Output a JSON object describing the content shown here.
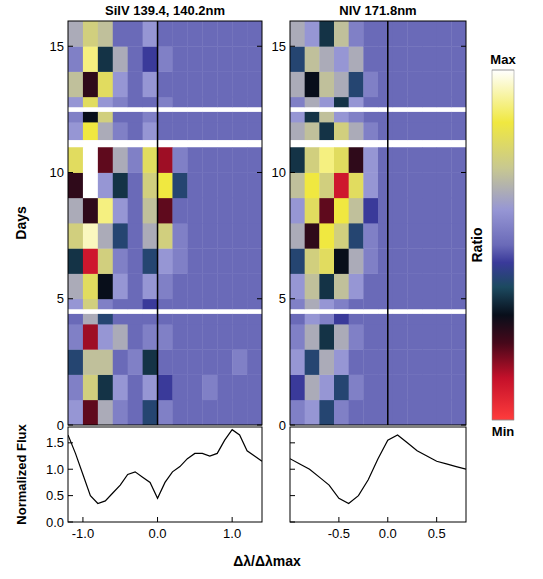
{
  "chart_data": [
    {
      "type": "heatmap",
      "title": "SiIV 139.4, 140.2nm",
      "y_label": "Days",
      "xlim": [
        -1.2,
        1.4
      ],
      "ylim": [
        0,
        16
      ],
      "yticks": [
        0,
        5,
        10,
        15
      ],
      "tick_labels": "y",
      "reference_x": 0,
      "x_bins": [
        -1.2,
        -1,
        -0.8,
        -0.6,
        -0.4,
        -0.2,
        0,
        0.2,
        0.4,
        0.6,
        0.8,
        1,
        1.2,
        1.4
      ],
      "y_bins": [
        0,
        1,
        2,
        3,
        4,
        4.4,
        4.6,
        5,
        6,
        7,
        8,
        9,
        10,
        11,
        11.3,
        12,
        12.4,
        12.6,
        13,
        14,
        15,
        16
      ],
      "cells": [
        [
          0.2,
          -0.6,
          0.3,
          0.1,
          0,
          -0.2,
          0.1,
          0,
          0,
          0,
          0,
          0,
          0
        ],
        [
          0.1,
          0.5,
          -0.3,
          0.2,
          0,
          0.2,
          -0.1,
          0,
          0,
          0.1,
          0,
          0,
          0
        ],
        [
          -0.2,
          0.4,
          0.4,
          0,
          0.1,
          -0.3,
          0,
          0,
          0,
          0,
          0,
          0.1,
          0
        ],
        [
          0.1,
          -0.7,
          0.2,
          0.3,
          0,
          0.1,
          0.1,
          0,
          0,
          0,
          0,
          0,
          0
        ],
        [
          0,
          0.3,
          -0.2,
          0,
          0,
          0,
          0,
          0,
          0,
          0,
          0,
          0,
          0
        ],
        null,
        [
          0.2,
          0.5,
          0.1,
          0,
          0,
          -0.1,
          0,
          0,
          0,
          0,
          0,
          0,
          0
        ],
        [
          0.3,
          0.6,
          -0.4,
          0.2,
          0,
          0.2,
          0.1,
          0,
          0,
          0,
          0,
          0,
          0
        ],
        [
          -0.3,
          -0.8,
          0.5,
          0.1,
          0,
          -0.2,
          0.2,
          0.1,
          0,
          0,
          0,
          0,
          0
        ],
        [
          0.5,
          0.9,
          0.3,
          -0.2,
          0,
          0.3,
          0.5,
          0.1,
          0,
          0,
          0,
          0,
          0
        ],
        [
          0.3,
          -0.5,
          0.8,
          0.2,
          0,
          0.4,
          -0.6,
          0,
          0,
          0,
          0,
          0,
          0
        ],
        [
          -0.5,
          1,
          0.2,
          -0.3,
          0,
          0.5,
          0.7,
          -0.2,
          0,
          0,
          0,
          0,
          0
        ],
        [
          0.6,
          1,
          -0.6,
          0.3,
          0.1,
          0.6,
          -0.7,
          0.1,
          0,
          0,
          0,
          0,
          0
        ],
        null,
        [
          0.2,
          0.7,
          0.3,
          0.1,
          0,
          0.2,
          0,
          0,
          0,
          0,
          0,
          0,
          0
        ],
        [
          0.1,
          -0.4,
          0.5,
          0,
          0,
          0.1,
          0,
          0,
          0,
          0,
          0,
          0,
          0
        ],
        null,
        [
          0.2,
          0.6,
          0.2,
          0.1,
          0,
          0,
          0.1,
          0,
          0,
          0,
          0,
          0,
          0
        ],
        [
          0.4,
          -0.5,
          0.6,
          0.2,
          0,
          0.2,
          0,
          0,
          0,
          0,
          0,
          0,
          0
        ],
        [
          0.1,
          0.8,
          -0.3,
          0.3,
          0,
          -0.1,
          0.1,
          0,
          0,
          0,
          0,
          0,
          0
        ],
        [
          0.3,
          0.5,
          0.4,
          0,
          0,
          0.2,
          0,
          0,
          0,
          0,
          0,
          0,
          0
        ]
      ],
      "colorbar": {
        "label": "Ratio",
        "range": [
          -1,
          1
        ],
        "ticks": [
          {
            "value": 1,
            "label": "Max"
          },
          {
            "value": -1,
            "label": "Min"
          }
        ]
      }
    },
    {
      "type": "heatmap",
      "title": "NIV 171.8nm",
      "xlim": [
        -1.0,
        0.8
      ],
      "ylim": [
        0,
        16
      ],
      "yticks": [
        0,
        5,
        10,
        15
      ],
      "tick_labels": "y",
      "reference_x": 0,
      "x_bins": [
        -1,
        -0.85,
        -0.7,
        -0.55,
        -0.4,
        -0.25,
        -0.1,
        0.05,
        0.2,
        0.35,
        0.5,
        0.65,
        0.8
      ],
      "y_bins": [
        0,
        1,
        2,
        3,
        4,
        4.4,
        4.6,
        5,
        6,
        7,
        8,
        9,
        10,
        11,
        11.3,
        12,
        12.4,
        12.6,
        13,
        14,
        15,
        16
      ],
      "cells": [
        [
          0.1,
          0.2,
          -0.2,
          0.1,
          0,
          0,
          0,
          0,
          0,
          0,
          0,
          0
        ],
        [
          -0.1,
          0.3,
          0.2,
          -0.2,
          0.1,
          0,
          0,
          0,
          0,
          0,
          0,
          0
        ],
        [
          0.2,
          -0.2,
          0.3,
          0.2,
          0,
          0,
          0,
          0,
          0,
          0,
          0,
          0
        ],
        [
          0.1,
          0.3,
          -0.3,
          0.3,
          0.1,
          0,
          0,
          0,
          0,
          0,
          0,
          0
        ],
        [
          0,
          0.2,
          0.1,
          -0.1,
          0,
          0,
          0,
          0,
          0,
          0,
          0,
          0
        ],
        null,
        [
          0.1,
          0.3,
          0.2,
          0.1,
          0,
          0,
          0,
          0,
          0,
          0,
          0,
          0
        ],
        [
          0.2,
          0.4,
          -0.3,
          0.4,
          0.2,
          0,
          0,
          0,
          0,
          0,
          0,
          0
        ],
        [
          -0.2,
          0.5,
          0.6,
          -0.4,
          0.3,
          0.1,
          0,
          0,
          0,
          0,
          0,
          0
        ],
        [
          0.3,
          -0.5,
          0.7,
          0.5,
          -0.2,
          0.1,
          0,
          0,
          0,
          0,
          0,
          0
        ],
        [
          0.2,
          0.6,
          -0.6,
          0.7,
          0.4,
          -0.1,
          0,
          0,
          0,
          0,
          0,
          0
        ],
        [
          0.4,
          0.7,
          0.5,
          -0.8,
          0.6,
          0.2,
          0,
          0,
          0,
          0,
          0,
          0
        ],
        [
          -0.3,
          0.5,
          0.8,
          0.6,
          -0.5,
          0.2,
          0,
          0,
          0,
          0,
          0,
          0
        ],
        null,
        [
          0.3,
          0.4,
          -0.3,
          0.5,
          0.3,
          0.1,
          0,
          0,
          0,
          0,
          0,
          0
        ],
        [
          0.2,
          -0.3,
          0.4,
          0.2,
          0.1,
          0,
          0,
          0,
          0,
          0,
          0,
          0
        ],
        null,
        [
          0.1,
          0.3,
          0.2,
          -0.3,
          0.2,
          0,
          0,
          0,
          0,
          0,
          0,
          0
        ],
        [
          0.3,
          -0.4,
          0.4,
          0.3,
          -0.2,
          0.1,
          0,
          0,
          0,
          0,
          0,
          0
        ],
        [
          -0.2,
          0.4,
          0.3,
          0.2,
          0.3,
          0,
          0,
          0,
          0,
          0,
          0,
          0
        ],
        [
          0.3,
          0.2,
          -0.3,
          0.4,
          0.1,
          0,
          0,
          0,
          0,
          0,
          0,
          0
        ]
      ]
    },
    {
      "type": "line",
      "y_label": "Normalized Flux",
      "x_label": "Δλ/Δλmax",
      "color": "#000000",
      "xlim": [
        -1.2,
        1.4
      ],
      "ylim": [
        0,
        1.8
      ],
      "xticks": [
        {
          "value": -1,
          "label": "-1.0"
        },
        {
          "value": 0,
          "label": "0.0"
        },
        {
          "value": 1,
          "label": "1.0"
        }
      ],
      "yticks": [
        {
          "value": 0,
          "label": "0.0"
        },
        0.5,
        {
          "value": 1,
          "label": "1.0"
        },
        1.5
      ],
      "x": [
        -1.2,
        -1.1,
        -1.0,
        -0.9,
        -0.8,
        -0.7,
        -0.6,
        -0.5,
        -0.4,
        -0.3,
        -0.2,
        -0.1,
        0,
        0.1,
        0.2,
        0.3,
        0.4,
        0.5,
        0.6,
        0.7,
        0.8,
        0.9,
        1.0,
        1.1,
        1.2,
        1.3,
        1.4
      ],
      "values": [
        1.65,
        1.3,
        0.9,
        0.5,
        0.35,
        0.4,
        0.55,
        0.7,
        0.9,
        0.95,
        0.85,
        0.75,
        0.45,
        0.75,
        0.95,
        1.05,
        1.2,
        1.3,
        1.3,
        1.25,
        1.3,
        1.55,
        1.75,
        1.65,
        1.35,
        1.25,
        1.15
      ]
    },
    {
      "type": "line",
      "color": "#000000",
      "tick_labels": "x",
      "xlim": [
        -1.0,
        0.8
      ],
      "ylim": [
        0,
        1.8
      ],
      "xticks": [
        -0.5,
        {
          "value": 0,
          "label": "0.0"
        },
        0.5
      ],
      "yticks": [
        0,
        0.5,
        1,
        1.5
      ],
      "x": [
        -1.0,
        -0.9,
        -0.8,
        -0.7,
        -0.6,
        -0.5,
        -0.4,
        -0.3,
        -0.2,
        -0.1,
        0,
        0.1,
        0.2,
        0.3,
        0.4,
        0.5,
        0.6,
        0.7,
        0.8
      ],
      "values": [
        1.2,
        1.1,
        1.0,
        0.85,
        0.7,
        0.45,
        0.35,
        0.5,
        0.8,
        1.2,
        1.55,
        1.65,
        1.5,
        1.35,
        1.25,
        1.15,
        1.1,
        1.05,
        1.0
      ]
    }
  ]
}
